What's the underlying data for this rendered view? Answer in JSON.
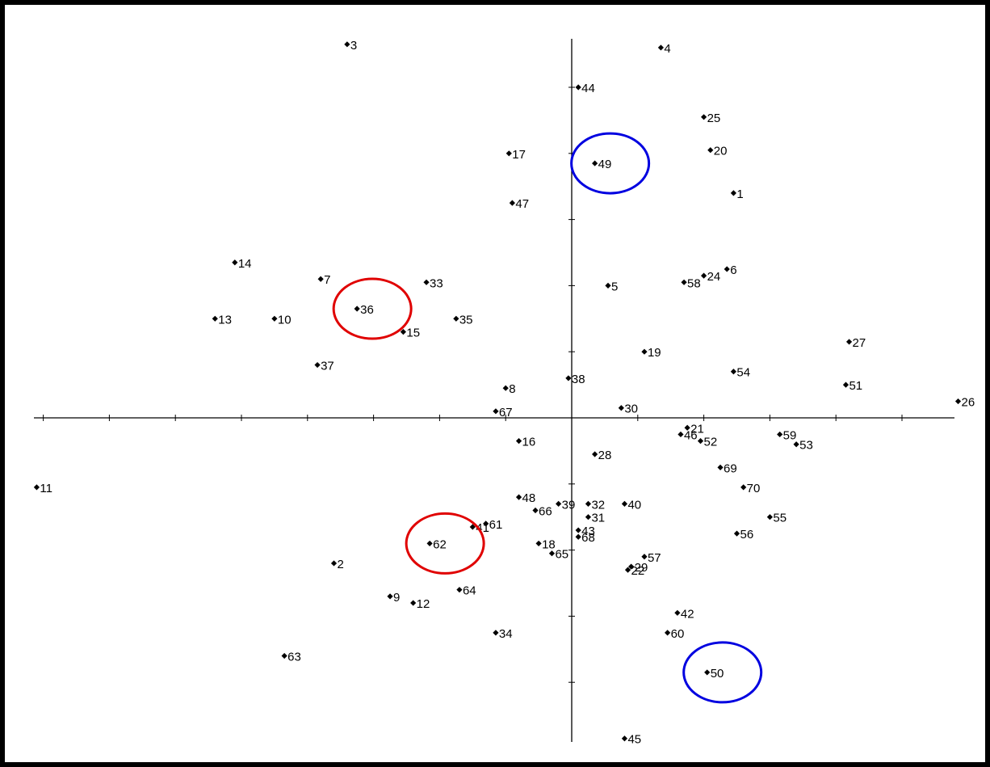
{
  "chart_data": {
    "type": "scatter",
    "title": "",
    "xlabel": "",
    "ylabel": "",
    "grid": false,
    "legend": "none",
    "axes_through_origin": true,
    "xlim": [
      -16.2,
      11.7
    ],
    "ylim": [
      -9.7,
      11.3
    ],
    "marker": "diamond",
    "colors": {
      "point": "#000000",
      "axis": "#000000",
      "highlight_red": "#e00000",
      "highlight_blue": "#0000e0"
    },
    "points": [
      {
        "label": "1",
        "x": 4.9,
        "y": 6.8
      },
      {
        "label": "2",
        "x": -7.2,
        "y": -4.4
      },
      {
        "label": "3",
        "x": -6.8,
        "y": 11.3
      },
      {
        "label": "4",
        "x": 2.7,
        "y": 11.2
      },
      {
        "label": "5",
        "x": 1.1,
        "y": 4.0
      },
      {
        "label": "6",
        "x": 4.7,
        "y": 4.5
      },
      {
        "label": "7",
        "x": -7.6,
        "y": 4.2
      },
      {
        "label": "8",
        "x": -2.0,
        "y": 0.9
      },
      {
        "label": "9",
        "x": -5.5,
        "y": -5.4
      },
      {
        "label": "10",
        "x": -9.0,
        "y": 3.0
      },
      {
        "label": "11",
        "x": -16.2,
        "y": -2.1
      },
      {
        "label": "12",
        "x": -4.8,
        "y": -5.6
      },
      {
        "label": "13",
        "x": -10.8,
        "y": 3.0
      },
      {
        "label": "14",
        "x": -10.2,
        "y": 4.7
      },
      {
        "label": "15",
        "x": -5.1,
        "y": 2.6
      },
      {
        "label": "16",
        "x": -1.6,
        "y": -0.7
      },
      {
        "label": "17",
        "x": -1.9,
        "y": 8.0
      },
      {
        "label": "18",
        "x": -1.0,
        "y": -3.8
      },
      {
        "label": "19",
        "x": 2.2,
        "y": 2.0
      },
      {
        "label": "20",
        "x": 4.2,
        "y": 8.1
      },
      {
        "label": "21",
        "x": 3.5,
        "y": -0.3
      },
      {
        "label": "22",
        "x": 1.7,
        "y": -4.6
      },
      {
        "label": "24",
        "x": 4.0,
        "y": 4.3
      },
      {
        "label": "25",
        "x": 4.0,
        "y": 9.1
      },
      {
        "label": "26",
        "x": 11.7,
        "y": 0.5
      },
      {
        "label": "27",
        "x": 8.4,
        "y": 2.3
      },
      {
        "label": "28",
        "x": 0.7,
        "y": -1.1
      },
      {
        "label": "29",
        "x": 1.8,
        "y": -4.5
      },
      {
        "label": "30",
        "x": 1.5,
        "y": 0.3
      },
      {
        "label": "31",
        "x": 0.5,
        "y": -3.0
      },
      {
        "label": "32",
        "x": 0.5,
        "y": -2.6
      },
      {
        "label": "33",
        "x": -4.4,
        "y": 4.1
      },
      {
        "label": "34",
        "x": -2.3,
        "y": -6.5
      },
      {
        "label": "35",
        "x": -3.5,
        "y": 3.0
      },
      {
        "label": "36",
        "x": -6.5,
        "y": 3.3
      },
      {
        "label": "37",
        "x": -7.7,
        "y": 1.6
      },
      {
        "label": "38",
        "x": -0.1,
        "y": 1.2
      },
      {
        "label": "39",
        "x": -0.4,
        "y": -2.6
      },
      {
        "label": "40",
        "x": 1.6,
        "y": -2.6
      },
      {
        "label": "41",
        "x": -3.0,
        "y": -3.3
      },
      {
        "label": "42",
        "x": 3.2,
        "y": -5.9
      },
      {
        "label": "43",
        "x": 0.2,
        "y": -3.4
      },
      {
        "label": "44",
        "x": 0.2,
        "y": 10.0
      },
      {
        "label": "45",
        "x": 1.6,
        "y": -9.7
      },
      {
        "label": "46",
        "x": 3.3,
        "y": -0.5
      },
      {
        "label": "47",
        "x": -1.8,
        "y": 6.5
      },
      {
        "label": "48",
        "x": -1.6,
        "y": -2.4
      },
      {
        "label": "49",
        "x": 0.7,
        "y": 7.7
      },
      {
        "label": "50",
        "x": 4.1,
        "y": -7.7
      },
      {
        "label": "51",
        "x": 8.3,
        "y": 1.0
      },
      {
        "label": "52",
        "x": 3.9,
        "y": -0.7
      },
      {
        "label": "53",
        "x": 6.8,
        "y": -0.8
      },
      {
        "label": "54",
        "x": 4.9,
        "y": 1.4
      },
      {
        "label": "55",
        "x": 6.0,
        "y": -3.0
      },
      {
        "label": "56",
        "x": 5.0,
        "y": -3.5
      },
      {
        "label": "57",
        "x": 2.2,
        "y": -4.2
      },
      {
        "label": "58",
        "x": 3.4,
        "y": 4.1
      },
      {
        "label": "59",
        "x": 6.3,
        "y": -0.5
      },
      {
        "label": "60",
        "x": 2.9,
        "y": -6.5
      },
      {
        "label": "61",
        "x": -2.6,
        "y": -3.2
      },
      {
        "label": "62",
        "x": -4.3,
        "y": -3.8
      },
      {
        "label": "63",
        "x": -8.7,
        "y": -7.2
      },
      {
        "label": "64",
        "x": -3.4,
        "y": -5.2
      },
      {
        "label": "65",
        "x": -0.6,
        "y": -4.1
      },
      {
        "label": "66",
        "x": -1.1,
        "y": -2.8
      },
      {
        "label": "67",
        "x": -2.3,
        "y": 0.2
      },
      {
        "label": "68",
        "x": 0.2,
        "y": -3.6
      },
      {
        "label": "69",
        "x": 4.5,
        "y": -1.5
      },
      {
        "label": "70",
        "x": 5.2,
        "y": -2.1
      }
    ],
    "highlights": [
      {
        "label": "36",
        "color": "red"
      },
      {
        "label": "62",
        "color": "red"
      },
      {
        "label": "49",
        "color": "blue"
      },
      {
        "label": "50",
        "color": "blue"
      }
    ]
  }
}
